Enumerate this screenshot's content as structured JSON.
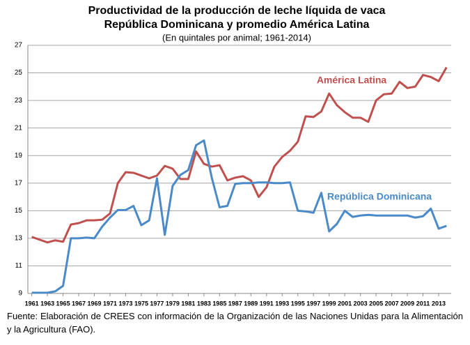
{
  "chart_data": {
    "type": "line",
    "title": [
      "Productividad de la producción de leche líquida de vaca",
      "República Dominicana y promedio América Latina"
    ],
    "subtitle": "(En quintales por animal; 1961-2014)",
    "x": [
      1961,
      1962,
      1963,
      1964,
      1965,
      1966,
      1967,
      1968,
      1969,
      1970,
      1971,
      1972,
      1973,
      1974,
      1975,
      1976,
      1977,
      1978,
      1979,
      1980,
      1981,
      1982,
      1983,
      1984,
      1985,
      1986,
      1987,
      1988,
      1989,
      1990,
      1991,
      1992,
      1993,
      1994,
      1995,
      1996,
      1997,
      1998,
      1999,
      2000,
      2001,
      2002,
      2003,
      2004,
      2005,
      2006,
      2007,
      2008,
      2009,
      2010,
      2011,
      2012,
      2013,
      2014
    ],
    "series": [
      {
        "name": "América Latina",
        "color": "#c0504d",
        "values": [
          13.1,
          12.9,
          12.7,
          12.85,
          12.75,
          14.0,
          14.1,
          14.3,
          14.3,
          14.35,
          14.8,
          17.0,
          17.8,
          17.75,
          17.55,
          17.35,
          17.55,
          18.25,
          18.05,
          17.3,
          17.3,
          19.3,
          18.4,
          18.2,
          18.3,
          17.2,
          17.4,
          17.5,
          17.2,
          16.0,
          16.7,
          18.2,
          18.9,
          19.35,
          20.0,
          21.85,
          21.8,
          22.2,
          23.5,
          22.65,
          22.15,
          21.75,
          21.75,
          21.45,
          23.0,
          23.45,
          23.5,
          24.35,
          23.9,
          24.0,
          24.85,
          24.7,
          24.4,
          25.4
        ]
      },
      {
        "name": "República Dominicana",
        "color": "#4a8ac9",
        "values": [
          9.05,
          9.05,
          9.05,
          9.15,
          9.55,
          13.0,
          13.0,
          13.05,
          13.0,
          13.85,
          14.5,
          15.05,
          15.05,
          15.35,
          13.95,
          14.3,
          17.35,
          13.25,
          16.8,
          17.6,
          17.95,
          19.75,
          20.1,
          17.4,
          15.25,
          15.35,
          16.95,
          17.0,
          17.0,
          17.05,
          17.05,
          17.0,
          17.0,
          17.05,
          15.0,
          14.95,
          14.85,
          16.3,
          13.5,
          14.05,
          15.0,
          14.55,
          14.65,
          14.7,
          14.65,
          14.65,
          14.65,
          14.65,
          14.65,
          14.5,
          14.6,
          15.15,
          13.7,
          13.9
        ]
      }
    ],
    "xlim": [
      1960.5,
      2014.6
    ],
    "xticks": [
      1961,
      1963,
      1965,
      1967,
      1969,
      1971,
      1973,
      1975,
      1977,
      1979,
      1981,
      1983,
      1985,
      1987,
      1989,
      1991,
      1993,
      1995,
      1997,
      1999,
      2001,
      2003,
      2005,
      2007,
      2009,
      2011,
      2013
    ],
    "ylim": [
      9,
      27
    ],
    "yticks": [
      9,
      11,
      13,
      15,
      17,
      19,
      21,
      23,
      25,
      27
    ],
    "grid": true,
    "source": "Fuente: Elaboración de CREES con información de la Organización de las Naciones Unidas para la Alimentación y la Agricultura (FAO)."
  }
}
